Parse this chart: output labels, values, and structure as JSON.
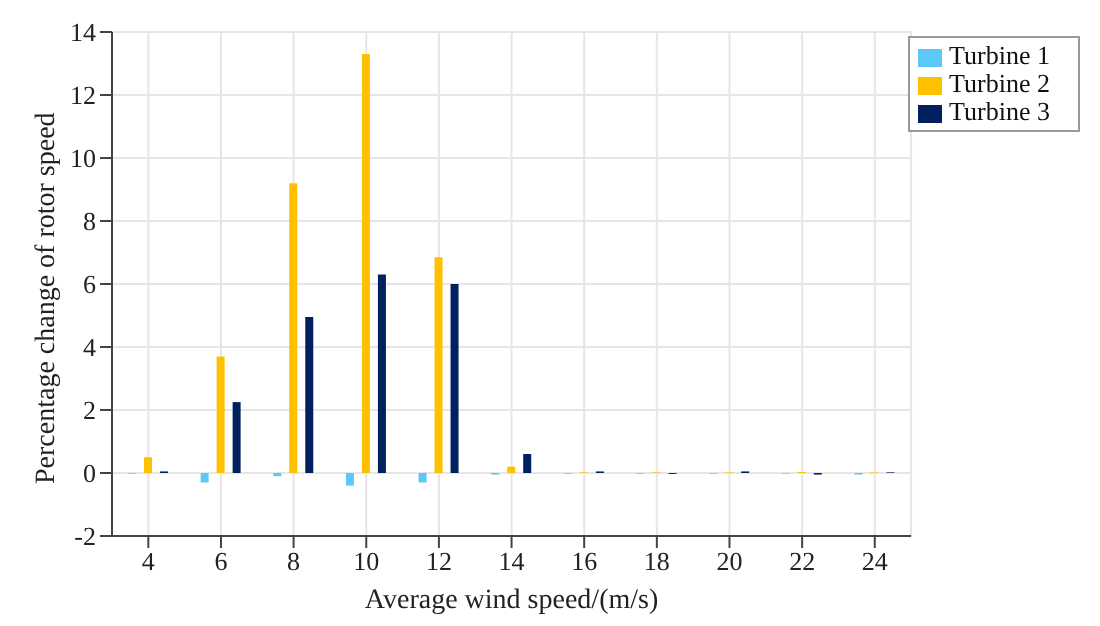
{
  "chart_data": {
    "type": "bar",
    "xlabel": "Average wind speed/(m/s)",
    "ylabel": "Percentage change of rotor speed",
    "categories": [
      "4",
      "6",
      "8",
      "10",
      "12",
      "14",
      "16",
      "18",
      "20",
      "22",
      "24"
    ],
    "series": [
      {
        "name": "Turbine 1",
        "color": "#5bc8f5",
        "values": [
          -0.02,
          -0.3,
          -0.1,
          -0.4,
          -0.3,
          -0.05,
          -0.02,
          -0.02,
          -0.02,
          -0.02,
          -0.05
        ]
      },
      {
        "name": "Turbine 2",
        "color": "#ffc000",
        "values": [
          0.5,
          3.7,
          9.2,
          13.3,
          6.85,
          0.2,
          0.02,
          0.02,
          0.02,
          0.03,
          0.02
        ]
      },
      {
        "name": "Turbine 3",
        "color": "#002060",
        "values": [
          0.05,
          2.25,
          4.95,
          6.3,
          6.0,
          0.6,
          0.05,
          -0.03,
          0.05,
          -0.05,
          0.02
        ]
      }
    ],
    "ylim": [
      -2,
      14
    ],
    "yticks": [
      -2,
      0,
      2,
      4,
      6,
      8,
      10,
      12,
      14
    ],
    "grid": true,
    "legend": "top right"
  }
}
